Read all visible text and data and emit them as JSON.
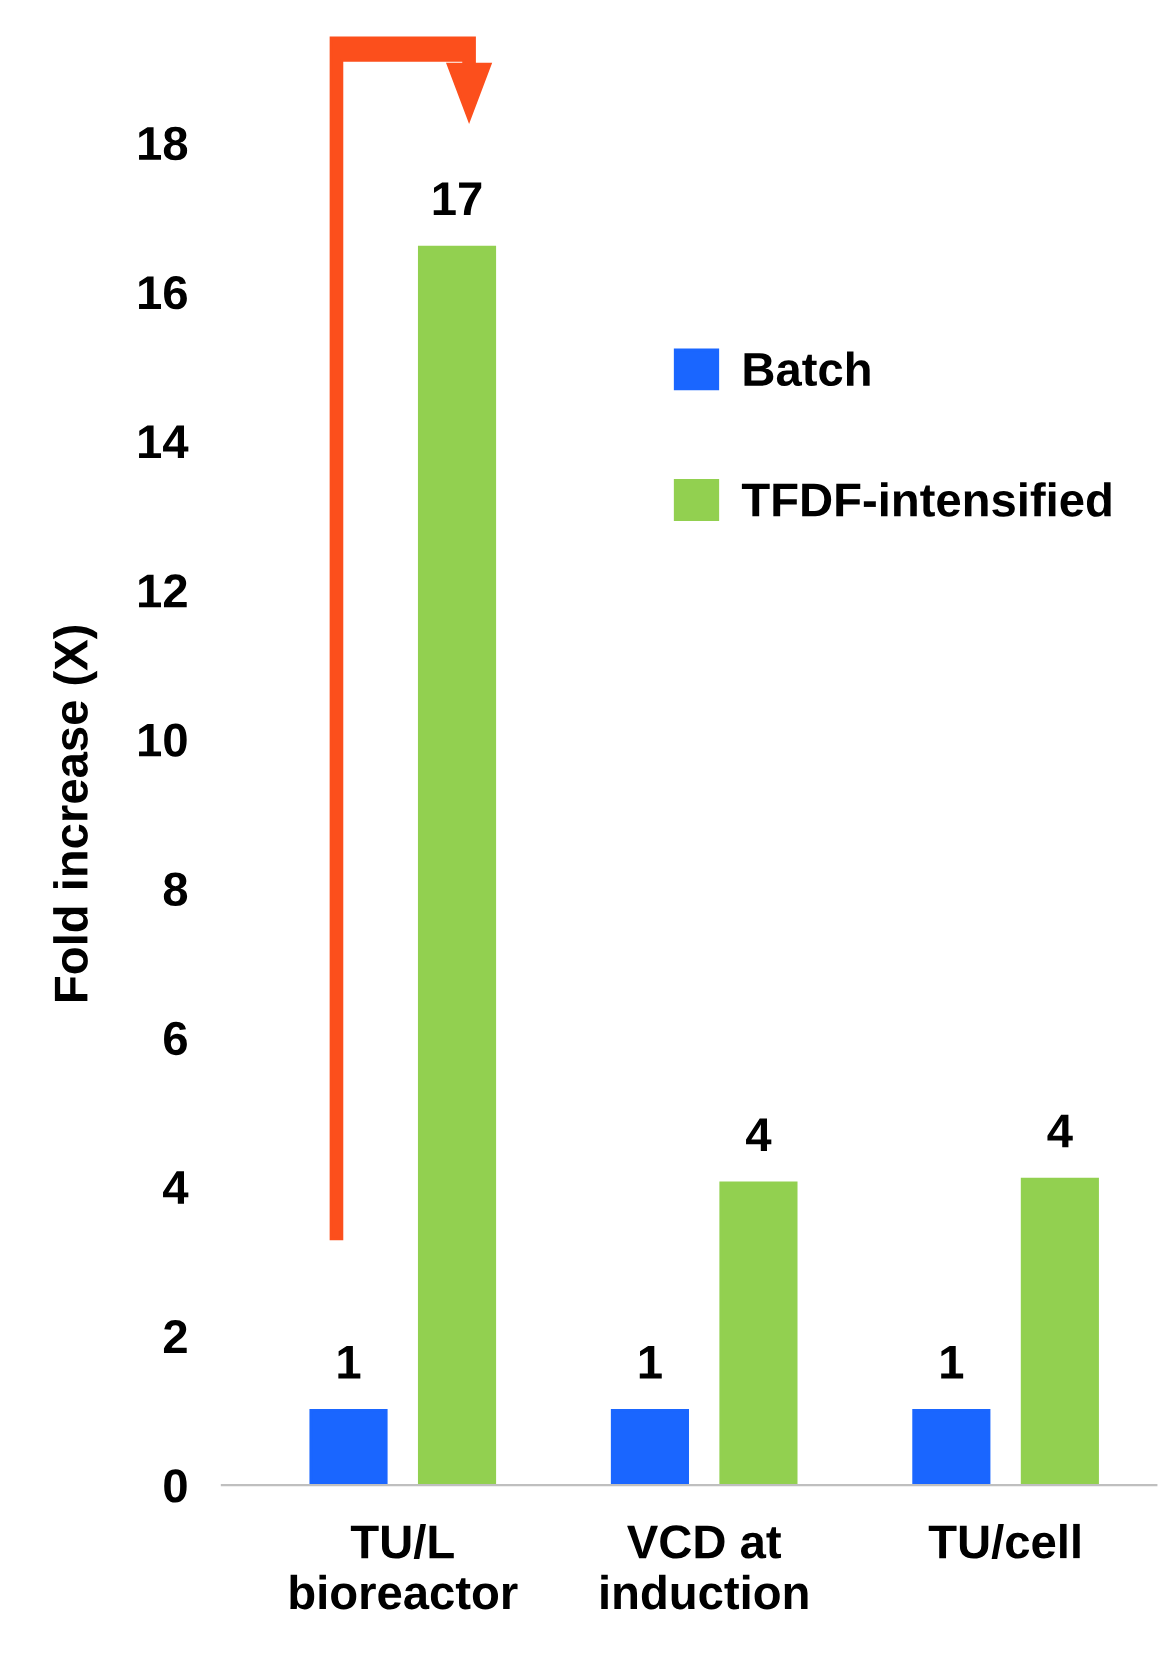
{
  "chart_data": {
    "type": "bar",
    "ylabel": "Fold increase (X)",
    "categories": [
      "TU/L\nbioreactor",
      "VCD at\ninduction",
      "TU/cell"
    ],
    "series": [
      {
        "name": "Batch",
        "color": "#1a66ff",
        "values": [
          1,
          1,
          1
        ],
        "value_labels": [
          "1",
          "1",
          "1"
        ]
      },
      {
        "name": "TFDF-intensified",
        "color": "#92d050",
        "values": [
          16.6,
          4.05,
          4.1
        ],
        "value_labels": [
          "17",
          "4",
          "4"
        ]
      }
    ],
    "ylim": [
      0,
      18
    ],
    "yticks": [
      0,
      2,
      4,
      6,
      8,
      10,
      12,
      14,
      16,
      18
    ],
    "grid": false,
    "legend": "right"
  }
}
